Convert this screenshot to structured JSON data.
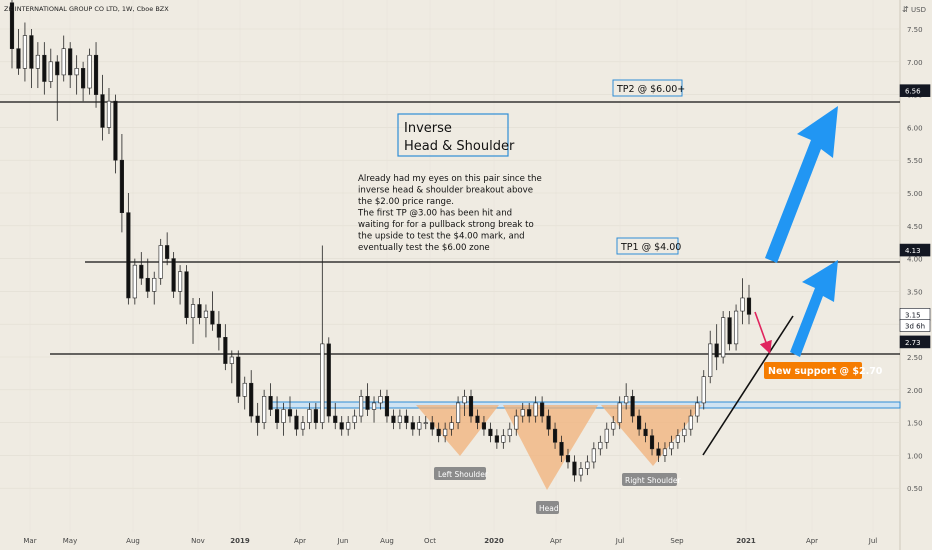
{
  "header": {
    "symbol_line": "ZK INTERNATIONAL GROUP CO LTD, 1W, Cboe BZX",
    "currency": "USD"
  },
  "chart_data": {
    "type": "candlestick",
    "ylim": [
      0.3,
      8.0
    ],
    "y_ticks": [
      "7.50",
      "7.00",
      "6.50",
      "6.00",
      "5.50",
      "5.00",
      "4.50",
      "4.00",
      "3.50",
      "3.00",
      "2.50",
      "2.00",
      "1.50",
      "1.00",
      "0.50"
    ],
    "x_ticks": [
      "Mar",
      "May",
      "Aug",
      "Nov",
      "2019",
      "Apr",
      "Jun",
      "Aug",
      "Oct",
      "2020",
      "Apr",
      "Jul",
      "Sep",
      "2021",
      "Apr",
      "Jul"
    ],
    "price_markers": [
      {
        "label": "6.56",
        "value": 6.56,
        "style": "dark"
      },
      {
        "label": "4.13",
        "value": 4.13,
        "style": "dark"
      },
      {
        "label": "3.15",
        "value": 3.15,
        "style": "light"
      },
      {
        "label": "3d 6h",
        "value": 2.98,
        "style": "light"
      },
      {
        "label": "2.73",
        "value": 2.73,
        "style": "dark"
      }
    ],
    "horizontal_lines": [
      {
        "name": "tp2-line",
        "value": 6.56
      },
      {
        "name": "tp1-line",
        "value": 4.13
      },
      {
        "name": "support-line",
        "value": 2.73
      }
    ],
    "neckline": {
      "value": 2.0
    },
    "candles": [
      [
        7.9,
        8.0,
        6.9,
        7.2
      ],
      [
        7.2,
        7.5,
        6.8,
        6.9
      ],
      [
        6.9,
        7.6,
        6.7,
        7.4
      ],
      [
        7.4,
        7.5,
        6.6,
        6.9
      ],
      [
        6.9,
        7.3,
        6.6,
        7.1
      ],
      [
        7.1,
        7.3,
        6.5,
        6.7
      ],
      [
        6.7,
        7.2,
        6.6,
        7.0
      ],
      [
        7.0,
        7.1,
        6.1,
        6.8
      ],
      [
        6.8,
        7.4,
        6.7,
        7.2
      ],
      [
        7.2,
        7.3,
        6.6,
        6.8
      ],
      [
        6.8,
        7.1,
        6.5,
        6.9
      ],
      [
        6.9,
        7.0,
        6.4,
        6.6
      ],
      [
        6.6,
        7.2,
        6.5,
        7.1
      ],
      [
        7.1,
        7.3,
        6.3,
        6.5
      ],
      [
        6.5,
        6.8,
        5.8,
        6.0
      ],
      [
        6.0,
        6.6,
        5.9,
        6.4
      ],
      [
        6.4,
        6.5,
        5.3,
        5.5
      ],
      [
        5.5,
        5.9,
        4.4,
        4.7
      ],
      [
        4.7,
        5.0,
        3.3,
        3.4
      ],
      [
        3.4,
        4.0,
        3.3,
        3.9
      ],
      [
        3.9,
        4.1,
        3.6,
        3.7
      ],
      [
        3.7,
        4.0,
        3.4,
        3.5
      ],
      [
        3.5,
        3.8,
        3.3,
        3.7
      ],
      [
        3.7,
        4.3,
        3.6,
        4.2
      ],
      [
        4.2,
        4.4,
        3.9,
        4.0
      ],
      [
        4.0,
        4.1,
        3.4,
        3.5
      ],
      [
        3.5,
        3.9,
        3.3,
        3.8
      ],
      [
        3.8,
        3.9,
        3.0,
        3.1
      ],
      [
        3.1,
        3.4,
        2.7,
        3.3
      ],
      [
        3.3,
        3.4,
        3.0,
        3.1
      ],
      [
        3.1,
        3.3,
        2.8,
        3.2
      ],
      [
        3.2,
        3.5,
        2.9,
        3.0
      ],
      [
        3.0,
        3.2,
        2.6,
        2.8
      ],
      [
        2.8,
        3.0,
        2.3,
        2.4
      ],
      [
        2.4,
        2.6,
        2.1,
        2.5
      ],
      [
        2.5,
        2.6,
        1.8,
        1.9
      ],
      [
        1.9,
        2.2,
        1.7,
        2.1
      ],
      [
        2.1,
        2.3,
        1.5,
        1.6
      ],
      [
        1.6,
        1.8,
        1.3,
        1.5
      ],
      [
        1.5,
        2.0,
        1.4,
        1.9
      ],
      [
        1.9,
        2.1,
        1.6,
        1.7
      ],
      [
        1.7,
        1.9,
        1.4,
        1.5
      ],
      [
        1.5,
        1.8,
        1.3,
        1.7
      ],
      [
        1.7,
        1.9,
        1.5,
        1.6
      ],
      [
        1.6,
        1.7,
        1.3,
        1.4
      ],
      [
        1.4,
        1.6,
        1.3,
        1.5
      ],
      [
        1.5,
        1.8,
        1.4,
        1.7
      ],
      [
        1.7,
        1.8,
        1.4,
        1.5
      ],
      [
        1.5,
        4.2,
        1.4,
        2.7
      ],
      [
        2.7,
        2.8,
        1.5,
        1.6
      ],
      [
        1.6,
        1.8,
        1.4,
        1.5
      ],
      [
        1.5,
        1.6,
        1.3,
        1.4
      ],
      [
        1.4,
        1.6,
        1.3,
        1.5
      ],
      [
        1.5,
        1.7,
        1.4,
        1.6
      ],
      [
        1.6,
        2.0,
        1.5,
        1.9
      ],
      [
        1.9,
        2.1,
        1.6,
        1.7
      ],
      [
        1.7,
        1.9,
        1.5,
        1.8
      ],
      [
        1.8,
        2.0,
        1.7,
        1.9
      ],
      [
        1.9,
        2.0,
        1.5,
        1.6
      ],
      [
        1.6,
        1.7,
        1.4,
        1.5
      ],
      [
        1.5,
        1.7,
        1.4,
        1.6
      ],
      [
        1.6,
        1.7,
        1.4,
        1.5
      ],
      [
        1.5,
        1.6,
        1.3,
        1.4
      ],
      [
        1.4,
        1.6,
        1.3,
        1.5
      ],
      [
        1.5,
        1.6,
        1.4,
        1.5
      ],
      [
        1.5,
        1.6,
        1.3,
        1.4
      ],
      [
        1.4,
        1.5,
        1.2,
        1.3
      ],
      [
        1.3,
        1.5,
        1.2,
        1.4
      ],
      [
        1.4,
        1.6,
        1.3,
        1.5
      ],
      [
        1.5,
        1.9,
        1.4,
        1.8
      ],
      [
        1.8,
        2.0,
        1.6,
        1.9
      ],
      [
        1.9,
        2.0,
        1.5,
        1.6
      ],
      [
        1.6,
        1.7,
        1.4,
        1.5
      ],
      [
        1.5,
        1.6,
        1.3,
        1.4
      ],
      [
        1.4,
        1.5,
        1.2,
        1.3
      ],
      [
        1.3,
        1.4,
        1.1,
        1.2
      ],
      [
        1.2,
        1.4,
        1.1,
        1.3
      ],
      [
        1.3,
        1.5,
        1.2,
        1.4
      ],
      [
        1.4,
        1.7,
        1.3,
        1.6
      ],
      [
        1.6,
        1.8,
        1.5,
        1.7
      ],
      [
        1.7,
        1.8,
        1.5,
        1.6
      ],
      [
        1.6,
        1.9,
        1.5,
        1.8
      ],
      [
        1.8,
        1.9,
        1.5,
        1.6
      ],
      [
        1.6,
        1.7,
        1.3,
        1.4
      ],
      [
        1.4,
        1.5,
        1.1,
        1.2
      ],
      [
        1.2,
        1.3,
        0.9,
        1.0
      ],
      [
        1.0,
        1.1,
        0.8,
        0.9
      ],
      [
        0.9,
        1.0,
        0.6,
        0.7
      ],
      [
        0.7,
        0.9,
        0.6,
        0.8
      ],
      [
        0.8,
        1.0,
        0.7,
        0.9
      ],
      [
        0.9,
        1.2,
        0.8,
        1.1
      ],
      [
        1.1,
        1.3,
        1.0,
        1.2
      ],
      [
        1.2,
        1.5,
        1.1,
        1.4
      ],
      [
        1.4,
        1.6,
        1.3,
        1.5
      ],
      [
        1.5,
        1.9,
        1.4,
        1.8
      ],
      [
        1.8,
        2.1,
        1.7,
        1.9
      ],
      [
        1.9,
        2.0,
        1.5,
        1.6
      ],
      [
        1.6,
        1.7,
        1.3,
        1.4
      ],
      [
        1.4,
        1.5,
        1.2,
        1.3
      ],
      [
        1.3,
        1.4,
        1.0,
        1.1
      ],
      [
        1.1,
        1.2,
        0.9,
        1.0
      ],
      [
        1.0,
        1.2,
        0.9,
        1.1
      ],
      [
        1.1,
        1.3,
        1.0,
        1.2
      ],
      [
        1.2,
        1.4,
        1.1,
        1.3
      ],
      [
        1.3,
        1.5,
        1.2,
        1.4
      ],
      [
        1.4,
        1.7,
        1.3,
        1.6
      ],
      [
        1.6,
        1.9,
        1.5,
        1.8
      ],
      [
        1.8,
        2.3,
        1.7,
        2.2
      ],
      [
        2.2,
        2.9,
        2.1,
        2.7
      ],
      [
        2.7,
        3.0,
        2.3,
        2.5
      ],
      [
        2.5,
        3.2,
        2.4,
        3.1
      ],
      [
        3.1,
        3.2,
        2.6,
        2.7
      ],
      [
        2.7,
        3.3,
        2.6,
        3.2
      ],
      [
        3.2,
        3.7,
        3.0,
        3.4
      ],
      [
        3.4,
        3.6,
        3.0,
        3.15
      ]
    ]
  },
  "annotations": {
    "title_box_line1": "Inverse",
    "title_box_line2": "Head & Shoulder",
    "note_lines": [
      "Already had my eyes on this pair since the",
      "inverse head & shoulder breakout above",
      "the $2.00 price range.",
      "The first TP @3.00 has been hit and",
      "waiting for for a pullback strong break to",
      "the upside to test the $4.00 mark, and",
      "eventually test the $6.00 zone"
    ],
    "tp2": "TP2 @ $6.00+",
    "tp1": "TP1 @ $4.00",
    "support": "New support @ $2.70",
    "left_shoulder": "Left Shoulder",
    "head": "Head",
    "right_shoulder": "Right Shoulder"
  },
  "colors": {
    "up": "#26a69a",
    "down": "#111111",
    "neckline": "#2f8ed6",
    "arrow": "#2196f3",
    "pattern_fill": "#f1b27a",
    "support_badge": "#f57c00",
    "pullback_arrow": "#e0245e"
  }
}
